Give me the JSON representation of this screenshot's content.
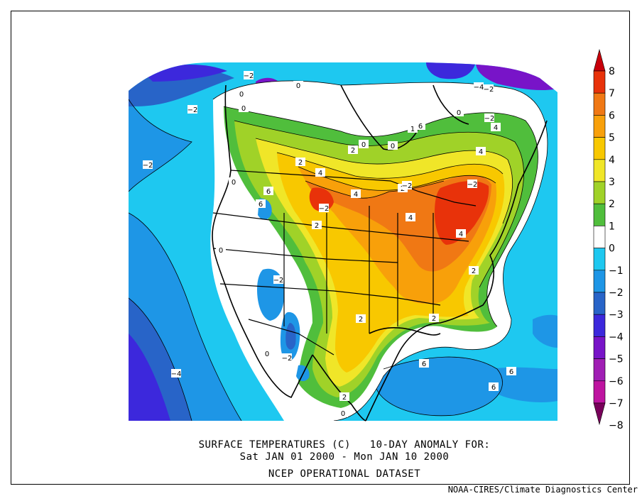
{
  "title_lines": [
    "SURFACE TEMPERATURES (C)   10-DAY ANOMALY FOR:",
    "Sat JAN 01 2000 - Mon JAN 10 2000",
    "NCEP OPERATIONAL DATASET"
  ],
  "credit": "NOAA-CIRES/Climate Diagnostics Center",
  "legend": {
    "levels": [
      "8",
      "7",
      "6",
      "5",
      "4",
      "3",
      "2",
      "1",
      "0",
      "−1",
      "−2",
      "−3",
      "−4",
      "−5",
      "−6",
      "−7",
      "−8"
    ],
    "colors": [
      "#c8000a",
      "#e8320a",
      "#f07814",
      "#f8a00a",
      "#f8c800",
      "#f0e628",
      "#a0d228",
      "#50be3c",
      "#ffffff",
      "#1ec8f0",
      "#1e96e6",
      "#2864c8",
      "#3c28dc",
      "#7814c8",
      "#a01eb4",
      "#be14a0",
      "#78005a"
    ]
  },
  "contour_labels": [
    "−2",
    "−2",
    "−2",
    "−2",
    "−4",
    "−2",
    "−4",
    "−2",
    "0",
    "0",
    "0",
    "0",
    "0",
    "0",
    "0",
    "0",
    "0",
    "0",
    "1",
    "2",
    "2",
    "2",
    "2",
    "2",
    "2",
    "2",
    "2",
    "4",
    "4",
    "4",
    "4",
    "4",
    "4",
    "6",
    "6",
    "6",
    "6",
    "6",
    "6",
    "−2",
    "−2",
    "−2",
    "−2"
  ]
}
